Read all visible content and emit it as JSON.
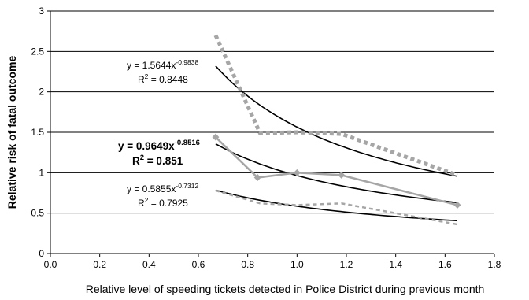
{
  "chart_data": {
    "type": "scatter",
    "xlabel": "Relative level of speeding tickets detected in Police District during previous month",
    "ylabel": "Relative risk of fatal outcome",
    "xlim": [
      0,
      1.8
    ],
    "ylim": [
      0,
      3
    ],
    "xticks": [
      "0.0",
      "0.2",
      "0.4",
      "0.6",
      "0.8",
      "1.0",
      "1.2",
      "1.4",
      "1.6",
      "1.8"
    ],
    "yticks": [
      "0",
      "0.5",
      "1",
      "1.5",
      "2",
      "2.5",
      "3"
    ],
    "grid": "horizontal",
    "legend": "none",
    "series": [
      {
        "style": "dotted-thick",
        "color": "#a6a6a6",
        "x": [
          0.67,
          0.85,
          1.0,
          1.18,
          1.65
        ],
        "y": [
          2.7,
          1.49,
          1.5,
          1.48,
          0.97
        ]
      },
      {
        "style": "solid-diamond",
        "color": "#a6a6a6",
        "x": [
          0.67,
          0.84,
          1.0,
          1.18,
          1.65
        ],
        "y": [
          1.44,
          0.94,
          1.0,
          0.97,
          0.6
        ]
      },
      {
        "style": "dashed",
        "color": "#a6a6a6",
        "x": [
          0.67,
          0.85,
          1.0,
          1.18,
          1.65
        ],
        "y": [
          0.78,
          0.62,
          0.6,
          0.62,
          0.36
        ]
      }
    ],
    "trendlines": [
      {
        "a": 1.5644,
        "b": -0.9838,
        "x_range": [
          0.67,
          1.65
        ],
        "equation_base": "y = 1.5644x",
        "equation_exp": "-0.9838",
        "r2_label": "R",
        "r2_exp": "2",
        "r2_value": " = 0.8448",
        "bold": false
      },
      {
        "a": 0.9649,
        "b": -0.8516,
        "x_range": [
          0.67,
          1.65
        ],
        "equation_base": "y = 0.9649x",
        "equation_exp": "-0.8516",
        "r2_label": "R",
        "r2_exp": "2",
        "r2_value": " = 0.851",
        "bold": true
      },
      {
        "a": 0.5855,
        "b": -0.7312,
        "x_range": [
          0.67,
          1.65
        ],
        "equation_base": "y = 0.5855x",
        "equation_exp": "-0.7312",
        "r2_label": "R",
        "r2_exp": "2",
        "r2_value": " = 0.7925",
        "bold": false
      }
    ]
  }
}
